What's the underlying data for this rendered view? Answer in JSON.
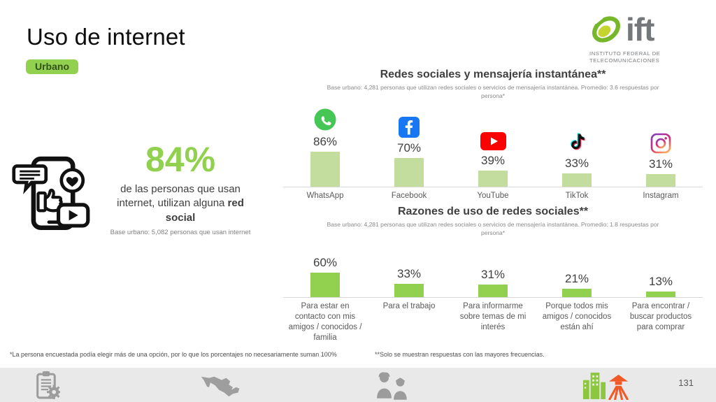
{
  "slide": {
    "title": "Uso de internet",
    "badge": "Urbano",
    "page_number": "131"
  },
  "logo": {
    "wordmark": "ift",
    "caption_line1": "INSTITUTO FEDERAL DE",
    "caption_line2": "TELECOMUNICACIONES"
  },
  "highlight": {
    "value": "84%",
    "text": "de las personas que usan internet, utilizan alguna ",
    "text_bold": "red social",
    "base_note": "Base urbano: 5,082 personas que usan internet"
  },
  "chart_data": [
    {
      "type": "bar",
      "title": "Redes sociales y mensajería instantánea**",
      "subtitle": "Base urbano: 4,281 personas que utilizan redes sociales o servicios de mensajería instantánea. Promedio: 3.6 respuestas por persona*",
      "categories": [
        "WhatsApp",
        "Facebook",
        "YouTube",
        "TikTok",
        "Instagram"
      ],
      "values": [
        86,
        70,
        39,
        33,
        31
      ],
      "value_labels": [
        "86%",
        "70%",
        "39%",
        "33%",
        "31%"
      ],
      "icons": [
        "whatsapp-icon",
        "facebook-icon",
        "youtube-icon",
        "tiktok-icon",
        "instagram-icon"
      ],
      "bar_color": "#c3dd9e",
      "ylim": [
        0,
        100
      ],
      "grid": false,
      "legend": "none"
    },
    {
      "type": "bar",
      "title": "Razones de uso de redes sociales**",
      "subtitle": "Base urbano: 4,281 personas que utilizan redes sociales o servicios de mensajería instantánea. Promedio: 1.8 respuestas por persona*",
      "categories": [
        "Para estar en contacto con mis amigos / conocidos / familia",
        "Para el trabajo",
        "Para informarme sobre temas de mi interés",
        "Porque todos mis amigos / conocidos están ahí",
        "Para encontrar / buscar productos para comprar"
      ],
      "values": [
        60,
        33,
        31,
        21,
        13
      ],
      "value_labels": [
        "60%",
        "33%",
        "31%",
        "21%",
        "13%"
      ],
      "bar_color": "#92d050",
      "ylim": [
        0,
        100
      ],
      "grid": false,
      "legend": "none"
    }
  ],
  "footnotes": {
    "left": "*La persona encuestada podía elegir más de una opción, por lo que los porcentajes no necesariamente suman 100%",
    "right": "**Solo se muestran respuestas con las mayores frecuencias."
  },
  "footer": {
    "icons": [
      "clipboard-gear",
      "mexico-map",
      "people",
      "city-farm"
    ]
  },
  "colors": {
    "accent_green": "#92d050",
    "light_green_bar": "#c3dd9e",
    "badge_text": "#33511a",
    "logo_gray": "#75787b",
    "footer_bg": "#e9e9e9",
    "text_dark": "#404040",
    "text_gray": "#595959",
    "whatsapp": "#45c655",
    "facebook": "#1877f2",
    "youtube": "#ff0000",
    "tiktok_cyan": "#25f4ee",
    "tiktok_pink": "#fe2c55",
    "orange_icon": "#f05a28"
  }
}
